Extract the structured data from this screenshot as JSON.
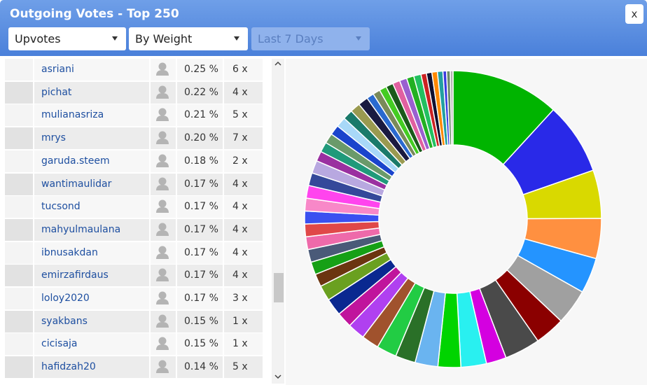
{
  "header": {
    "title": "Outgoing Votes - Top 250",
    "close": "x",
    "filters": [
      "Upvotes",
      "By Weight",
      "Last 7 Days"
    ]
  },
  "table": {
    "rows": [
      [
        "asriani",
        "0.25 %",
        "6 x"
      ],
      [
        "pichat",
        "0.22 %",
        "4 x"
      ],
      [
        "mulianasriza",
        "0.21 %",
        "5 x"
      ],
      [
        "mrys",
        "0.20 %",
        "7 x"
      ],
      [
        "garuda.steem",
        "0.18 %",
        "2 x"
      ],
      [
        "wantimaulidar",
        "0.17 %",
        "4 x"
      ],
      [
        "tucsond",
        "0.17 %",
        "4 x"
      ],
      [
        "mahyulmaulana",
        "0.17 %",
        "4 x"
      ],
      [
        "ibnusakdan",
        "0.17 %",
        "4 x"
      ],
      [
        "emirzafirdaus",
        "0.17 %",
        "4 x"
      ],
      [
        "loloy2020",
        "0.17 %",
        "3 x"
      ],
      [
        "syakbans",
        "0.15 %",
        "1 x"
      ],
      [
        "cicisaja",
        "0.15 %",
        "1 x"
      ],
      [
        "hafidzah20",
        "0.14 %",
        "5 x"
      ]
    ]
  },
  "chart_data": {
    "type": "donut",
    "values": [
      11.9,
      7.9,
      5.3,
      4.4,
      3.9,
      3.9,
      3.3,
      3.9,
      2.2,
      2.8,
      2.5,
      2.5,
      2.2,
      2.2,
      1.9,
      1.9,
      1.7,
      1.9,
      1.7,
      1.4,
      1.4,
      1.4,
      1.4,
      1.4,
      1.4,
      1.4,
      1.4,
      1.4,
      1.4,
      1.1,
      1.1,
      1.1,
      1.1,
      1.1,
      1.1,
      1.1,
      1.1,
      0.8,
      0.8,
      0.8,
      0.8,
      0.8,
      0.8,
      0.8,
      0.8,
      0.6,
      0.6,
      0.6,
      0.6,
      0.4,
      0.4,
      0.3
    ],
    "colors": [
      "#00b400",
      "#2929e8",
      "#d9d900",
      "#ff9040",
      "#2494ff",
      "#a0a0a0",
      "#8b0000",
      "#4a4a4a",
      "#d400e0",
      "#29f0f0",
      "#00d400",
      "#6ab4f0",
      "#2a7028",
      "#22cc44",
      "#a0522d",
      "#b040f0",
      "#c0149c",
      "#0a2890",
      "#6aa020",
      "#6b3510",
      "#16a016",
      "#4a5a78",
      "#ee6aaa",
      "#e04848",
      "#3a50f0",
      "#f888c8",
      "#ff44ee",
      "#34489a",
      "#b8a8e0",
      "#9a30a0",
      "#209a7a",
      "#6a9a6a",
      "#1a44cc",
      "#a8d8f8",
      "#1a7a6a",
      "#9a9a50",
      "#1a1a40",
      "#2a6ad0",
      "#7a8a5a",
      "#44cc22",
      "#1a5a1a",
      "#e060a0",
      "#9a60d0",
      "#22b022",
      "#22c060",
      "#cc2222",
      "#101030",
      "#ff8800",
      "#22a0a0",
      "#3a3ae0",
      "#6a8a6a",
      "#b0b0b0"
    ]
  }
}
